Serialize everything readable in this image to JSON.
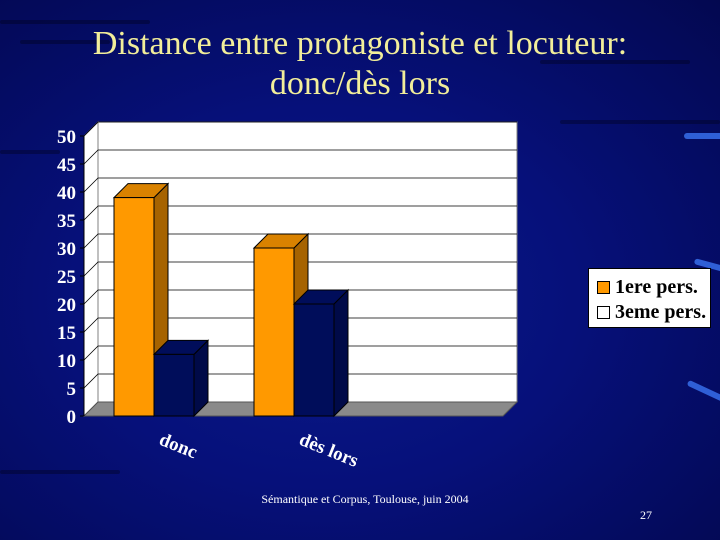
{
  "slide": {
    "title_line1": "Distance entre protagoniste et locuteur:",
    "title_line2": "donc/dès lors",
    "footer": "Sémantique et Corpus, Toulouse, juin 2004",
    "page_number": "27"
  },
  "chart_data": {
    "type": "bar",
    "categories": [
      "donc",
      "dès lors"
    ],
    "series": [
      {
        "name": "1ere pers.",
        "values": [
          39,
          30
        ],
        "color": "#ff9900"
      },
      {
        "name": "3eme pers.",
        "values": [
          11,
          20
        ],
        "color": "#000d5a"
      }
    ],
    "ylim": [
      0,
      50
    ],
    "yticks": [
      0,
      5,
      10,
      15,
      20,
      25,
      30,
      35,
      40,
      45,
      50
    ],
    "grid": true,
    "legend_position": "right",
    "three_d": true,
    "plot_background": "#ffffff",
    "floor_color": "#8a8a8a"
  }
}
